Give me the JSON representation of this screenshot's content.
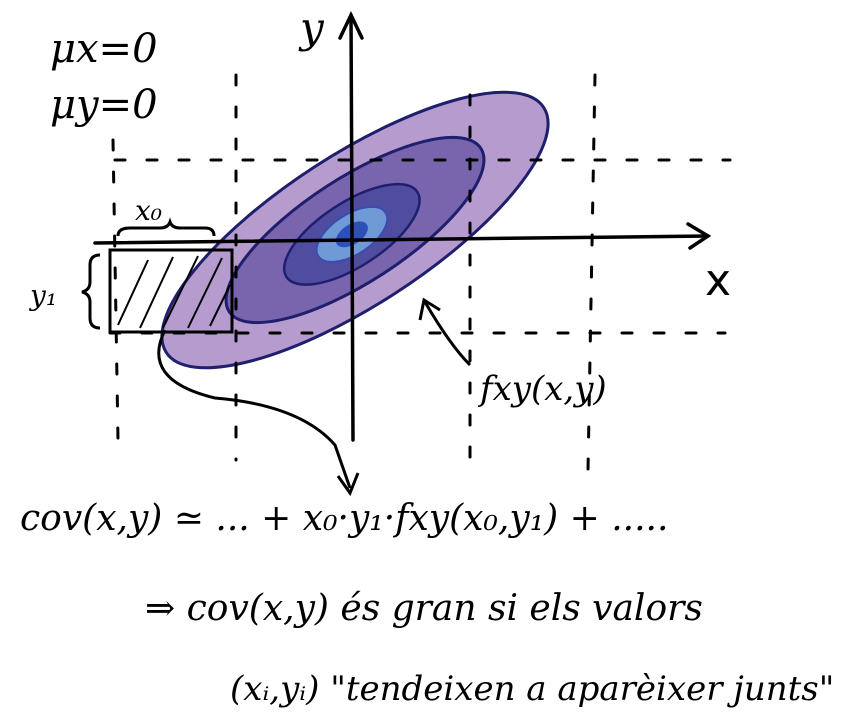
{
  "means": {
    "mu_x": "μx=0",
    "mu_y": "μy=0"
  },
  "axes": {
    "y_label": "y",
    "x_label": "x"
  },
  "labels": {
    "x0": "x₀",
    "y1": "y₁",
    "density": "fxy(x,y)"
  },
  "equation": "cov(x,y) ≃  ...  + x₀·y₁·fxy(x₀,y₁) + .....",
  "conclusion": {
    "line1": "⇒ cov(x,y) és gran si els valors",
    "line2": "(xᵢ,yᵢ) \"tendeixen a aparèixer junts\""
  },
  "colors": {
    "outer_fill": "#a98bc6",
    "mid_fill": "#6e5aa8",
    "inner_fill": "#4b4aa0",
    "core_fill": "#6f9ad6",
    "outline": "#1f1f6e"
  }
}
